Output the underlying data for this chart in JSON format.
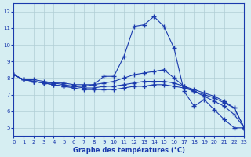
{
  "title": "Graphe des températures (°C)",
  "bg_color": "#d6eef2",
  "grid_color": "#b0cdd5",
  "line_color": "#1a3aad",
  "xlim": [
    0,
    23
  ],
  "ylim": [
    4.5,
    12.5
  ],
  "xticks": [
    0,
    1,
    2,
    3,
    4,
    5,
    6,
    7,
    8,
    9,
    10,
    11,
    12,
    13,
    14,
    15,
    16,
    17,
    18,
    19,
    20,
    21,
    22,
    23
  ],
  "yticks": [
    5,
    6,
    7,
    8,
    9,
    10,
    11,
    12
  ],
  "line1": {
    "x": [
      0,
      1,
      2,
      3,
      4,
      5,
      6,
      7,
      8,
      9,
      10,
      11,
      12,
      13,
      14,
      15,
      16,
      17,
      18,
      19,
      20,
      21,
      22,
      23
    ],
    "y": [
      8.2,
      7.9,
      7.9,
      7.8,
      7.7,
      7.7,
      7.6,
      7.6,
      7.6,
      8.1,
      8.1,
      9.3,
      11.1,
      11.2,
      11.7,
      11.1,
      9.8,
      7.2,
      6.3,
      6.7,
      6.1,
      5.5,
      5.0,
      5.0
    ]
  },
  "line2": {
    "x": [
      0,
      1,
      2,
      3,
      4,
      5,
      6,
      7,
      8,
      9,
      10,
      11,
      12,
      13,
      14,
      15,
      16,
      17,
      18,
      19,
      20,
      21,
      22,
      23
    ],
    "y": [
      8.2,
      7.9,
      7.8,
      7.7,
      7.7,
      7.6,
      7.5,
      7.5,
      7.6,
      7.7,
      7.8,
      8.0,
      8.2,
      8.3,
      8.4,
      8.5,
      8.0,
      7.5,
      7.2,
      7.0,
      6.8,
      6.5,
      6.2,
      5.0
    ]
  },
  "line3": {
    "x": [
      0,
      1,
      2,
      3,
      4,
      5,
      6,
      7,
      8,
      9,
      10,
      11,
      12,
      13,
      14,
      15,
      16,
      17,
      18,
      19,
      20,
      21,
      22,
      23
    ],
    "y": [
      8.2,
      7.9,
      7.8,
      7.7,
      7.6,
      7.5,
      7.5,
      7.4,
      7.4,
      7.5,
      7.5,
      7.6,
      7.7,
      7.8,
      7.8,
      7.8,
      7.7,
      7.5,
      7.3,
      7.1,
      6.9,
      6.6,
      6.2,
      5.0
    ]
  },
  "line4": {
    "x": [
      0,
      1,
      2,
      3,
      4,
      5,
      6,
      7,
      8,
      9,
      10,
      11,
      12,
      13,
      14,
      15,
      16,
      17,
      18,
      19,
      20,
      21,
      22,
      23
    ],
    "y": [
      8.2,
      7.9,
      7.8,
      7.7,
      7.6,
      7.5,
      7.4,
      7.3,
      7.3,
      7.3,
      7.3,
      7.4,
      7.5,
      7.5,
      7.6,
      7.6,
      7.5,
      7.4,
      7.2,
      6.9,
      6.6,
      6.3,
      5.8,
      5.0
    ]
  }
}
